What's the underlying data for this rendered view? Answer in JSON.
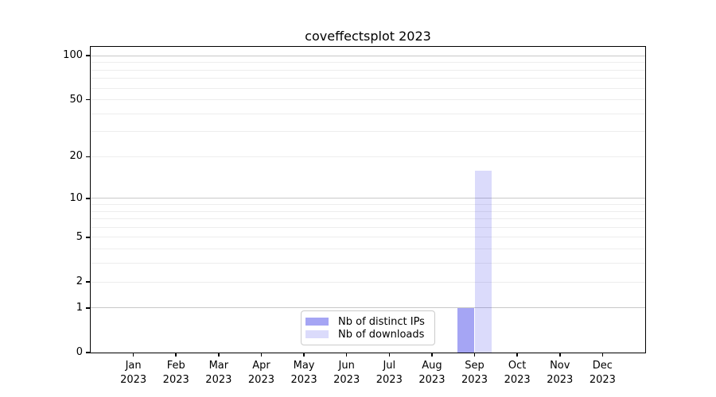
{
  "figure": {
    "title": "coveffectsplot 2023"
  },
  "chart_data": {
    "type": "bar",
    "title": "coveffectsplot 2023",
    "x_categories": [
      {
        "month": "Jan",
        "year": "2023"
      },
      {
        "month": "Feb",
        "year": "2023"
      },
      {
        "month": "Mar",
        "year": "2023"
      },
      {
        "month": "Apr",
        "year": "2023"
      },
      {
        "month": "May",
        "year": "2023"
      },
      {
        "month": "Jun",
        "year": "2023"
      },
      {
        "month": "Jul",
        "year": "2023"
      },
      {
        "month": "Aug",
        "year": "2023"
      },
      {
        "month": "Sep",
        "year": "2023"
      },
      {
        "month": "Oct",
        "year": "2023"
      },
      {
        "month": "Nov",
        "year": "2023"
      },
      {
        "month": "Dec",
        "year": "2023"
      }
    ],
    "series": [
      {
        "name": "Nb of distinct IPs",
        "color": "rgba(50,50,230,0.44)",
        "color_hex": "#a5a5f4",
        "values": [
          0,
          0,
          0,
          0,
          0,
          0,
          0,
          0,
          1,
          0,
          0,
          0
        ]
      },
      {
        "name": "Nb of downloads",
        "color": "rgba(50,50,230,0.175)",
        "color_hex": "#dbdbfa",
        "values": [
          0,
          0,
          0,
          0,
          0,
          0,
          0,
          0,
          16,
          0,
          0,
          0
        ]
      }
    ],
    "xlabel": "",
    "ylabel": "",
    "y_scale": "log1p",
    "ylim": [
      0,
      115
    ],
    "y_ticks": [
      0,
      1,
      2,
      5,
      10,
      20,
      50,
      100
    ],
    "y_major_gridlines": [
      1,
      10,
      100
    ],
    "y_minor_gridlines": [
      2,
      3,
      4,
      5,
      6,
      7,
      8,
      9,
      20,
      30,
      40,
      50,
      60,
      70,
      80,
      90
    ],
    "grid": true,
    "legend_position": "lower center"
  },
  "colors": {
    "background": "#ffffff",
    "spine": "#000000",
    "text": "#000000",
    "gridline_major": "#c8c8c8",
    "gridline_minor": "#ededed",
    "legend_border": "#cbcbcb"
  }
}
